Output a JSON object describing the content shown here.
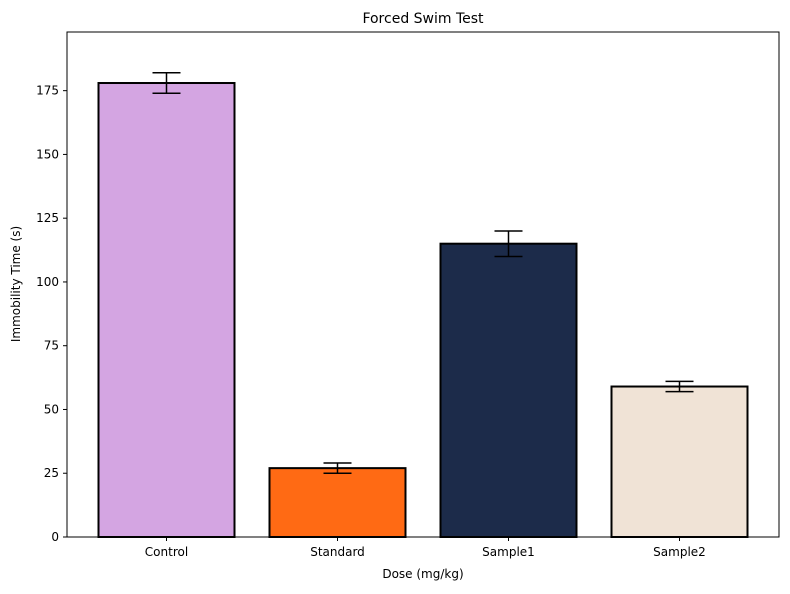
{
  "chart_data": {
    "type": "bar",
    "title": "Forced Swim Test",
    "xlabel": "Dose (mg/kg)",
    "ylabel": "Immobility Time (s)",
    "categories": [
      "Control",
      "Standard",
      "Sample1",
      "Sample2"
    ],
    "values": [
      178,
      27,
      115,
      59
    ],
    "errors": [
      4,
      2,
      5,
      2
    ],
    "colors": [
      "#D4A5E2",
      "#FF6A14",
      "#1C2B4A",
      "#F0E3D6"
    ],
    "edge_color": "#000000",
    "ylim": [
      0,
      198
    ],
    "yticks": [
      0,
      25,
      50,
      75,
      100,
      125,
      150,
      175
    ],
    "grid": false
  }
}
